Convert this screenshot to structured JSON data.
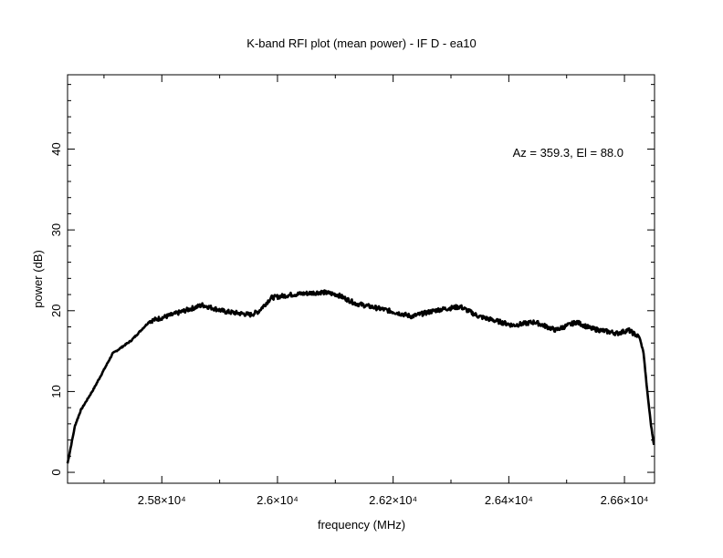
{
  "chart_data": {
    "type": "line",
    "title": "K-band RFI plot (mean power) - IF D - ea10",
    "xlabel": "frequency (MHz)",
    "ylabel": "power (dB)",
    "annotation": "Az = 359.3, El = 88.0",
    "xlim": [
      25637,
      26652
    ],
    "ylim": [
      -1.35,
      49.2
    ],
    "x_ticks": [
      25800,
      26000,
      26200,
      26400,
      26600
    ],
    "x_tick_labels": [
      "2.58×10⁴",
      "2.6×10⁴",
      "2.62×10⁴",
      "2.64×10⁴",
      "2.66×10⁴"
    ],
    "x_minor_step": 100,
    "y_ticks": [
      0,
      10,
      20,
      30,
      40
    ],
    "y_tick_labels": [
      "0",
      "10",
      "20",
      "30",
      "40"
    ],
    "y_minor_step": 2,
    "grid": false,
    "line_color": "#000000",
    "series": [
      {
        "x": [
          25637,
          25650,
          25660,
          25682,
          25715,
          25747,
          25779,
          25818,
          25870,
          25909,
          25954,
          25967,
          25989,
          26025,
          26077,
          26103,
          26135,
          26187,
          26232,
          26277,
          26316,
          26348,
          26407,
          26445,
          26481,
          26517,
          26542,
          26588,
          26607,
          26626,
          26633,
          26639,
          26646,
          26651
        ],
        "y": [
          1.1,
          5.8,
          7.7,
          10.3,
          14.7,
          16.3,
          18.7,
          19.5,
          20.7,
          19.9,
          19.5,
          19.9,
          21.6,
          22.0,
          22.3,
          22.0,
          20.9,
          20.1,
          19.3,
          20.1,
          20.5,
          19.3,
          18.2,
          18.6,
          17.6,
          18.6,
          17.8,
          17.2,
          17.6,
          16.7,
          14.8,
          10.3,
          5.8,
          3.4
        ]
      }
    ]
  }
}
